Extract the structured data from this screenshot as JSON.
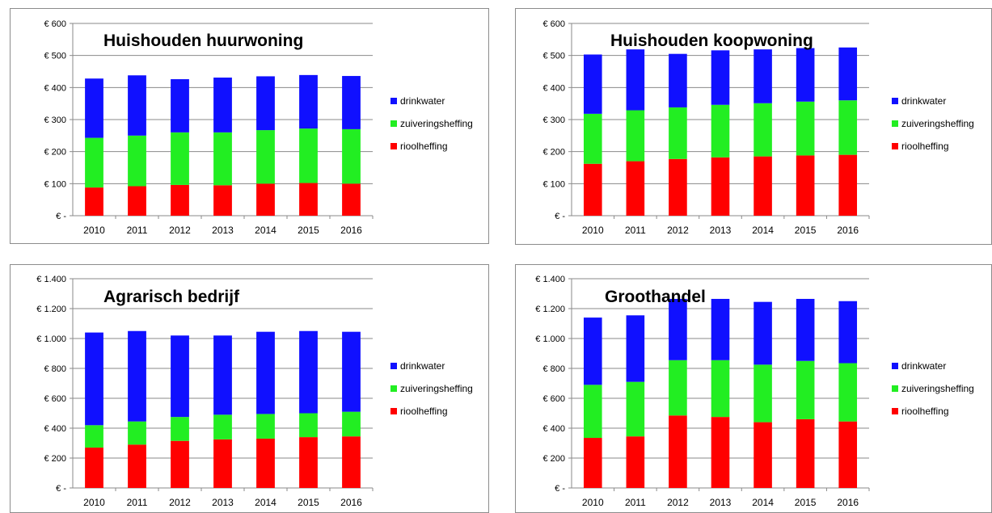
{
  "colors": {
    "drinkwater": "#1010ff",
    "zuiveringsheffing": "#22ee22",
    "rioolheffing": "#ff0000"
  },
  "chart_data": [
    {
      "type": "bar",
      "stacked": true,
      "title": "Huishouden huurwoning",
      "categories": [
        "2010",
        "2011",
        "2012",
        "2013",
        "2014",
        "2015",
        "2016"
      ],
      "ylim": [
        0,
        600
      ],
      "yticks": [
        "€ -",
        "€ 100",
        "€ 200",
        "€ 300",
        "€ 400",
        "€ 500",
        "€ 600"
      ],
      "legend_position": "right",
      "grid": true,
      "series": [
        {
          "name": "rioolheffing",
          "values": [
            88,
            92,
            96,
            95,
            100,
            102,
            100
          ]
        },
        {
          "name": "zuiveringsheffing",
          "values": [
            155,
            158,
            164,
            165,
            167,
            170,
            170
          ]
        },
        {
          "name": "drinkwater",
          "values": [
            185,
            188,
            166,
            171,
            168,
            167,
            166
          ]
        }
      ],
      "legend": [
        "drinkwater",
        "zuiveringsheffing",
        "rioolheffing"
      ]
    },
    {
      "type": "bar",
      "stacked": true,
      "title": "Huishouden koopwoning",
      "categories": [
        "2010",
        "2011",
        "2012",
        "2013",
        "2014",
        "2015",
        "2016"
      ],
      "ylim": [
        0,
        600
      ],
      "yticks": [
        "€ -",
        "€ 100",
        "€ 200",
        "€ 300",
        "€ 400",
        "€ 500",
        "€ 600"
      ],
      "legend_position": "right",
      "grid": true,
      "series": [
        {
          "name": "rioolheffing",
          "values": [
            162,
            170,
            177,
            182,
            185,
            188,
            190
          ]
        },
        {
          "name": "zuiveringsheffing",
          "values": [
            156,
            159,
            161,
            164,
            166,
            168,
            170
          ]
        },
        {
          "name": "drinkwater",
          "values": [
            185,
            190,
            167,
            170,
            168,
            167,
            165
          ]
        }
      ],
      "legend": [
        "drinkwater",
        "zuiveringsheffing",
        "rioolheffing"
      ]
    },
    {
      "type": "bar",
      "stacked": true,
      "title": "Agrarisch bedrijf",
      "categories": [
        "2010",
        "2011",
        "2012",
        "2013",
        "2014",
        "2015",
        "2016"
      ],
      "ylim": [
        0,
        1400
      ],
      "yticks": [
        "€ -",
        "€ 200",
        "€ 400",
        "€ 600",
        "€ 800",
        "€ 1.000",
        "€ 1.200",
        "€ 1.400"
      ],
      "legend_position": "right",
      "grid": true,
      "series": [
        {
          "name": "rioolheffing",
          "values": [
            270,
            290,
            315,
            325,
            330,
            340,
            345
          ]
        },
        {
          "name": "zuiveringsheffing",
          "values": [
            150,
            155,
            160,
            165,
            165,
            160,
            165
          ]
        },
        {
          "name": "drinkwater",
          "values": [
            620,
            605,
            545,
            530,
            550,
            550,
            535
          ]
        }
      ],
      "legend": [
        "drinkwater",
        "zuiveringsheffing",
        "rioolheffing"
      ]
    },
    {
      "type": "bar",
      "stacked": true,
      "title": "Groothandel",
      "categories": [
        "2010",
        "2011",
        "2012",
        "2013",
        "2014",
        "2015",
        "2016"
      ],
      "ylim": [
        0,
        1400
      ],
      "yticks": [
        "€ -",
        "€ 200",
        "€ 400",
        "€ 600",
        "€ 800",
        "€ 1.000",
        "€ 1.200",
        "€ 1.400"
      ],
      "legend_position": "right",
      "grid": true,
      "series": [
        {
          "name": "rioolheffing",
          "values": [
            335,
            345,
            485,
            475,
            440,
            460,
            445
          ]
        },
        {
          "name": "zuiveringsheffing",
          "values": [
            355,
            365,
            370,
            380,
            385,
            390,
            390
          ]
        },
        {
          "name": "drinkwater",
          "values": [
            450,
            445,
            410,
            410,
            420,
            415,
            415
          ]
        }
      ],
      "legend": [
        "drinkwater",
        "zuiveringsheffing",
        "rioolheffing"
      ]
    }
  ]
}
